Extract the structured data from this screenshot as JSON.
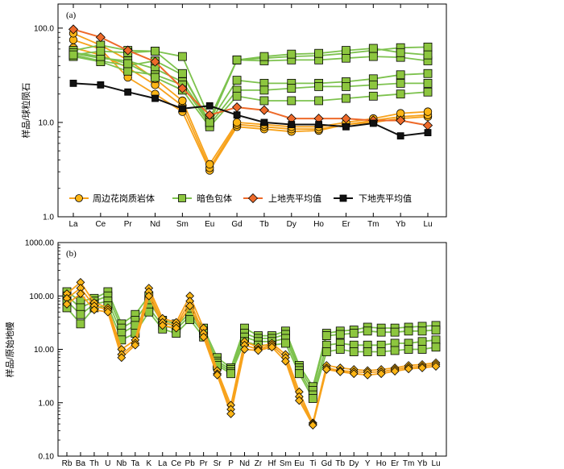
{
  "chart_data": [
    {
      "panel": "(a)",
      "type": "line",
      "scale": "log",
      "ylabel": "样品/球粒陨石",
      "ylim": [
        1,
        180
      ],
      "yticks": [
        "1.0",
        "10.0",
        "100.0"
      ],
      "categories": [
        "La",
        "Ce",
        "Pr",
        "Nd",
        "Sm",
        "Eu",
        "Gd",
        "Tb",
        "Dy",
        "Ho",
        "Er",
        "Tm",
        "Yb",
        "Lu"
      ],
      "legend": [
        "周边花岗质岩体",
        "暗色包体",
        "上地壳平均值",
        "下地壳平均值"
      ],
      "colors": {
        "granite": "#FDB515",
        "granite_line": "#F7A21B",
        "enclave": "#8DC63F",
        "enclave_line": "#7DC24E",
        "upper": "#EE6A2A",
        "lower": "#111111"
      },
      "groups": [
        {
          "name": "周边花岗质岩体",
          "marker": "circle",
          "series": [
            [
              75,
              60,
              30,
              20,
              13,
              3.1,
              9.0,
              8.5,
              8.0,
              8.2,
              9.5,
              10.0,
              11.0,
              11.5
            ],
            [
              62,
              52,
              38,
              25,
              15,
              3.3,
              9.5,
              9.0,
              8.5,
              8.5,
              9.5,
              10.5,
              11.5,
              12.0
            ],
            [
              88,
              66,
              46,
              29,
              17,
              3.6,
              10.0,
              9.5,
              9.0,
              9.0,
              10.0,
              11.0,
              12.5,
              13.0
            ]
          ]
        },
        {
          "name": "暗色包体",
          "marker": "square",
          "series": [
            [
              58,
              66,
              58,
              57,
              50,
              11,
              46,
              48,
              50,
              51,
              54,
              58,
              62,
              63
            ],
            [
              52,
              45,
              40,
              45,
              32,
              10,
              46,
              45,
              46,
              46,
              48,
              50,
              49,
              45
            ],
            [
              54,
              48,
              45,
              37,
              27,
              10,
              28,
              26,
              26,
              26,
              27,
              29,
              32,
              33
            ],
            [
              50,
              44,
              35,
              32,
              25,
              9.5,
              22,
              22,
              23,
              24,
              24,
              25,
              26,
              26
            ],
            [
              55,
              50,
              42,
              30,
              22,
              9,
              19,
              17,
              17,
              17,
              18,
              19,
              20,
              21
            ],
            [
              52,
              57,
              55,
              57,
              33,
              10,
              46,
              50,
              53,
              54,
              58,
              61,
              55,
              52
            ]
          ]
        },
        {
          "name": "上地壳平均值",
          "marker": "diamond",
          "series": [
            [
              97,
              80,
              58,
              44,
              23,
              12,
              14.5,
              13.5,
              11,
              11,
              11,
              10.5,
              10.5,
              9.3
            ]
          ]
        },
        {
          "name": "下地壳平均值",
          "marker": "square-black",
          "series": [
            [
              26,
              25,
              21,
              18,
              14,
              15,
              12,
              10,
              9.5,
              9.5,
              9.0,
              9.8,
              7.2,
              7.8
            ]
          ]
        }
      ]
    },
    {
      "panel": "(b)",
      "type": "line",
      "scale": "log",
      "ylabel": "样品/原始地幔",
      "ylim": [
        0.1,
        1000
      ],
      "yticks": [
        "0.10",
        "1.00",
        "10.00",
        "100.00",
        "1000.00"
      ],
      "categories": [
        "Rb",
        "Ba",
        "Th",
        "U",
        "Nb",
        "Ta",
        "K",
        "La",
        "Ce",
        "Pb",
        "Pr",
        "Sr",
        "P",
        "Nd",
        "Zr",
        "Hf",
        "Sm",
        "Eu",
        "Ti",
        "Gd",
        "Tb",
        "Dy",
        "Y",
        "Ho",
        "Er",
        "Tm",
        "Yb",
        "Lu"
      ],
      "groups": [
        {
          "name": "暗色包体",
          "marker": "square",
          "series": [
            [
              120,
              80,
              90,
              120,
              30,
              45,
              100,
              35,
              30,
              55,
              25,
              7,
              4.5,
              25,
              18,
              18,
              22,
              5,
              2.0,
              20,
              22,
              23,
              26,
              25,
              25,
              26,
              27,
              28
            ],
            [
              100,
              60,
              80,
              100,
              25,
              35,
              80,
              32,
              27,
              48,
              22,
              6,
              4.2,
              20,
              16,
              16,
              19,
              4.5,
              1.7,
              18,
              19,
              20,
              22,
              21,
              21,
              22,
              22,
              23
            ],
            [
              80,
              45,
              70,
              80,
              20,
              28,
              60,
              28,
              24,
              42,
              20,
              5.5,
              3.8,
              17,
              14,
              14,
              16,
              4,
              1.4,
              12,
              13,
              12,
              12,
              12,
              13,
              13,
              14,
              15
            ],
            [
              60,
              30,
              60,
              65,
              15,
              20,
              50,
              24,
              20,
              36,
              17,
              5,
              3.5,
              14,
              12,
              12,
              13,
              3.5,
              1.2,
              9,
              10,
              9,
              9,
              9,
              9.5,
              10,
              10,
              11
            ]
          ]
        },
        {
          "name": "周边花岗质岩体",
          "marker": "diamond",
          "series": [
            [
              110,
              180,
              75,
              60,
              10,
              15,
              140,
              38,
              32,
              100,
              25,
              4,
              0.9,
              14,
              11,
              13,
              8,
              1.6,
              0.42,
              5,
              4.5,
              4.2,
              4.0,
              4.2,
              4.5,
              5.0,
              5.2,
              5.6
            ],
            [
              90,
              140,
              65,
              55,
              8,
              13,
              120,
              32,
              28,
              80,
              20,
              3.5,
              0.75,
              12,
              10,
              12,
              7,
              1.3,
              0.4,
              4.5,
              4.0,
              3.8,
              3.7,
              3.8,
              4.2,
              4.6,
              4.8,
              5.2
            ],
            [
              70,
              110,
              55,
              50,
              7,
              12,
              100,
              28,
              25,
              65,
              17,
              3.3,
              0.62,
              10,
              9.5,
              11,
              6,
              1.1,
              0.38,
              4.2,
              3.8,
              3.5,
              3.3,
              3.5,
              3.9,
              4.3,
              4.5,
              4.8
            ]
          ]
        }
      ]
    }
  ]
}
